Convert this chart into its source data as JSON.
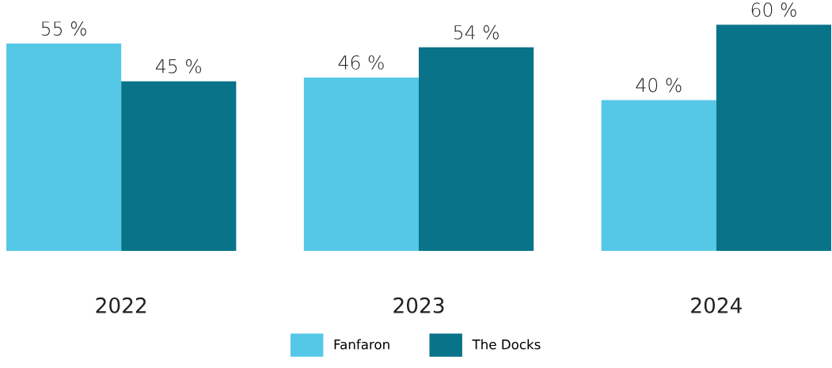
{
  "chart_data": {
    "type": "bar",
    "categories": [
      "2022",
      "2023",
      "2024"
    ],
    "series": [
      {
        "name": "Fanfaron",
        "color": "#55c8e8",
        "values": [
          55,
          46,
          40
        ],
        "value_labels": [
          "55 %",
          "46 %",
          "40 %"
        ]
      },
      {
        "name": "The Docks",
        "color": "#087389",
        "values": [
          45,
          54,
          60
        ],
        "value_labels": [
          "45 %",
          "54 %",
          "60 %"
        ]
      }
    ],
    "legend": "bottom"
  }
}
